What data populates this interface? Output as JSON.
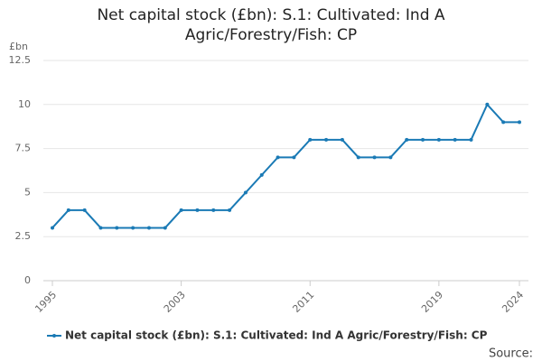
{
  "chart_data": {
    "type": "line",
    "title": "Net capital stock (£bn): S.1: Cultivated: Ind A Agric/Forestry/Fish: CP",
    "y_label": "£bn",
    "x": [
      1995,
      1996,
      1997,
      1998,
      1999,
      2000,
      2001,
      2002,
      2003,
      2004,
      2005,
      2006,
      2007,
      2008,
      2009,
      2010,
      2011,
      2012,
      2013,
      2014,
      2015,
      2016,
      2017,
      2018,
      2019,
      2020,
      2021,
      2022,
      2023,
      2024
    ],
    "series": [
      {
        "name": "Net capital stock (£bn): S.1: Cultivated: Ind A Agric/Forestry/Fish: CP",
        "color": "#1a7ab5",
        "values": [
          3,
          4,
          4,
          3,
          3,
          3,
          3,
          3,
          4,
          4,
          4,
          4,
          5,
          6,
          7,
          7,
          8,
          8,
          8,
          7,
          7,
          7,
          8,
          8,
          8,
          8,
          8,
          10,
          9,
          9
        ]
      }
    ],
    "xlim": [
      1995,
      2024
    ],
    "xticks": [
      1995,
      2003,
      2011,
      2019,
      2024
    ],
    "ylim": [
      0,
      12.5
    ],
    "yticks": [
      0,
      2.5,
      5,
      7.5,
      10,
      12.5
    ],
    "grid": true,
    "legend": "bottom",
    "source": "Source:"
  }
}
